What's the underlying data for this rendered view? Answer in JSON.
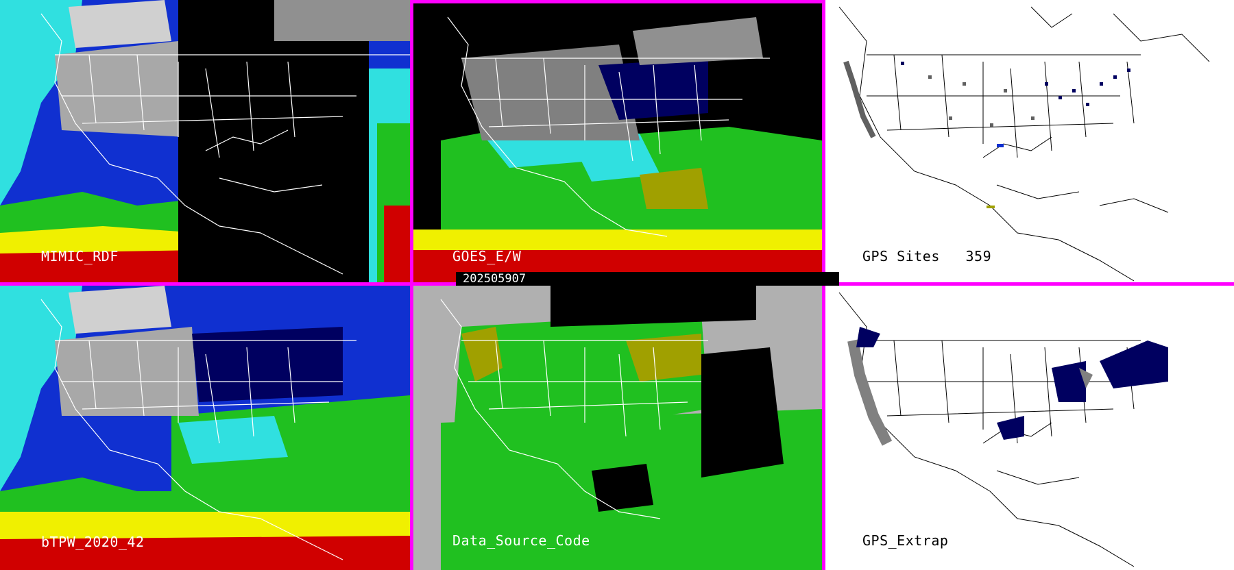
{
  "colors": {
    "border": "#ff00ff",
    "black": "#000000",
    "white": "#ffffff",
    "gray_land": "#b0b0b0",
    "navy": "#000060",
    "blue": "#1030d0",
    "cyan": "#30e0e0",
    "green": "#20c020",
    "olive": "#a0a000",
    "yellow": "#f0f000",
    "red": "#d00000"
  },
  "panels": {
    "p1": {
      "label": "MIMIC_RDF"
    },
    "p2": {
      "label": "GOES_E/W"
    },
    "p3": {
      "label": "GPS Sites   359"
    },
    "p4": {
      "label": "bTPW_2020_42"
    },
    "p5": {
      "label": "Data_Source_Code"
    },
    "p6": {
      "label": "GPS_Extrap"
    }
  },
  "timestamp": "202505907"
}
